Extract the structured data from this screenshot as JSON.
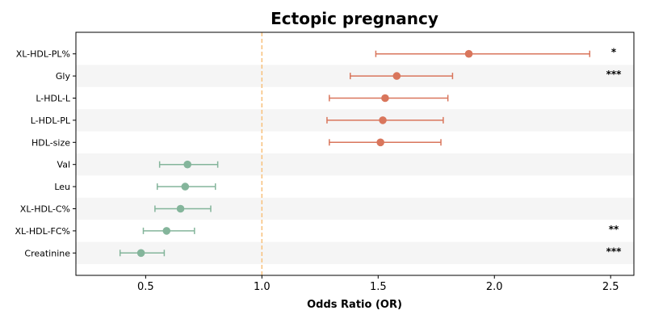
{
  "chart_data": {
    "type": "forest",
    "title": "Ectopic pregnancy",
    "xlabel": "Odds Ratio (OR)",
    "ylabel": "",
    "xlim": [
      0.2,
      2.6
    ],
    "xticks": [
      "0.5",
      "1.0",
      "1.5",
      "2.0",
      "2.5"
    ],
    "reference_line": 1.0,
    "grid": false,
    "colors": {
      "risk": "#d9765c",
      "protective": "#84b59b",
      "reference": "#f7c07a",
      "band": "#f5f5f5"
    },
    "rows": [
      {
        "label": "XL-HDL-PL%",
        "or": 1.89,
        "lower": 1.49,
        "upper": 2.41,
        "sig": "*",
        "group": "risk"
      },
      {
        "label": "Gly",
        "or": 1.58,
        "lower": 1.38,
        "upper": 1.82,
        "sig": "***",
        "group": "risk"
      },
      {
        "label": "L-HDL-L",
        "or": 1.53,
        "lower": 1.29,
        "upper": 1.8,
        "sig": "",
        "group": "risk"
      },
      {
        "label": "L-HDL-PL",
        "or": 1.52,
        "lower": 1.28,
        "upper": 1.78,
        "sig": "",
        "group": "risk"
      },
      {
        "label": "HDL-size",
        "or": 1.51,
        "lower": 1.29,
        "upper": 1.77,
        "sig": "",
        "group": "risk"
      },
      {
        "label": "Val",
        "or": 0.68,
        "lower": 0.56,
        "upper": 0.81,
        "sig": "",
        "group": "protective"
      },
      {
        "label": "Leu",
        "or": 0.67,
        "lower": 0.55,
        "upper": 0.8,
        "sig": "",
        "group": "protective"
      },
      {
        "label": "XL-HDL-C%",
        "or": 0.65,
        "lower": 0.54,
        "upper": 0.78,
        "sig": "",
        "group": "protective"
      },
      {
        "label": "XL-HDL-FC%",
        "or": 0.59,
        "lower": 0.49,
        "upper": 0.71,
        "sig": "**",
        "group": "protective"
      },
      {
        "label": "Creatinine",
        "or": 0.48,
        "lower": 0.39,
        "upper": 0.58,
        "sig": "***",
        "group": "protective"
      }
    ]
  }
}
